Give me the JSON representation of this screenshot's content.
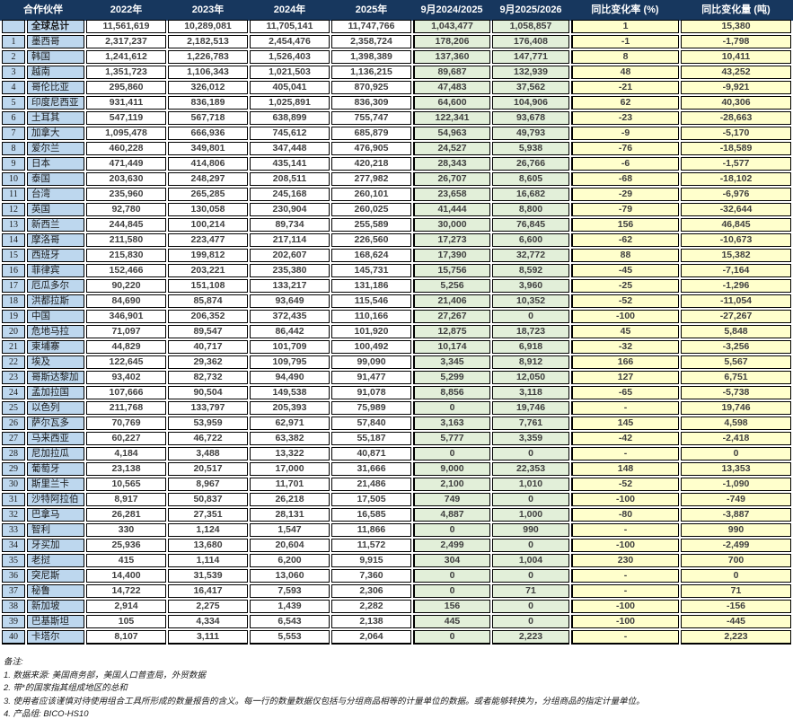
{
  "header": {
    "partner_label": "合作伙伴",
    "columns": [
      "2022年",
      "2023年",
      "2024年",
      "2025年",
      "9月2024/2025",
      "9月2025/2026",
      "同比变化率 (%)",
      "同比变化量 (吨)"
    ]
  },
  "colors": {
    "header_bg": "#17375E",
    "header_text": "#FFFFFF",
    "label_bg": "#BDD7EE",
    "year_bg": "#FFFFFF",
    "sep_month_bg": "#E2EFD9",
    "change_bg": "#FFFFCC",
    "number_text": "#3F3F3F"
  },
  "total_row": {
    "num": "",
    "name": "全球总计",
    "values": [
      "11,561,619",
      "10,289,081",
      "11,705,141",
      "11,747,766",
      "1,043,477",
      "1,058,857",
      "1",
      "15,380"
    ]
  },
  "rows": [
    {
      "num": "1",
      "name": "墨西哥",
      "values": [
        "2,317,237",
        "2,182,513",
        "2,454,476",
        "2,358,724",
        "178,206",
        "176,408",
        "-1",
        "-1,798"
      ]
    },
    {
      "num": "2",
      "name": "韩国",
      "values": [
        "1,241,612",
        "1,226,783",
        "1,526,403",
        "1,398,389",
        "137,360",
        "147,771",
        "8",
        "10,411"
      ]
    },
    {
      "num": "3",
      "name": "越南",
      "values": [
        "1,351,723",
        "1,106,343",
        "1,021,503",
        "1,136,215",
        "89,687",
        "132,939",
        "48",
        "43,252"
      ]
    },
    {
      "num": "4",
      "name": "哥伦比亚",
      "values": [
        "295,860",
        "326,012",
        "405,041",
        "870,925",
        "47,483",
        "37,562",
        "-21",
        "-9,921"
      ]
    },
    {
      "num": "5",
      "name": "印度尼西亚",
      "values": [
        "931,411",
        "836,189",
        "1,025,891",
        "836,309",
        "64,600",
        "104,906",
        "62",
        "40,306"
      ]
    },
    {
      "num": "6",
      "name": "土耳其",
      "values": [
        "547,119",
        "567,718",
        "638,899",
        "755,747",
        "122,341",
        "93,678",
        "-23",
        "-28,663"
      ]
    },
    {
      "num": "7",
      "name": "加拿大",
      "values": [
        "1,095,478",
        "666,936",
        "745,612",
        "685,879",
        "54,963",
        "49,793",
        "-9",
        "-5,170"
      ]
    },
    {
      "num": "8",
      "name": "爱尔兰",
      "values": [
        "460,228",
        "349,801",
        "347,448",
        "476,905",
        "24,527",
        "5,938",
        "-76",
        "-18,589"
      ]
    },
    {
      "num": "9",
      "name": "日本",
      "values": [
        "471,449",
        "414,806",
        "435,141",
        "420,218",
        "28,343",
        "26,766",
        "-6",
        "-1,577"
      ]
    },
    {
      "num": "10",
      "name": "泰国",
      "values": [
        "203,630",
        "248,297",
        "208,511",
        "277,982",
        "26,707",
        "8,605",
        "-68",
        "-18,102"
      ]
    },
    {
      "num": "11",
      "name": "台湾",
      "values": [
        "235,960",
        "265,285",
        "245,168",
        "260,101",
        "23,658",
        "16,682",
        "-29",
        "-6,976"
      ]
    },
    {
      "num": "12",
      "name": "英国",
      "values": [
        "92,780",
        "130,058",
        "230,904",
        "260,025",
        "41,444",
        "8,800",
        "-79",
        "-32,644"
      ]
    },
    {
      "num": "13",
      "name": "新西兰",
      "values": [
        "244,845",
        "100,214",
        "89,734",
        "255,589",
        "30,000",
        "76,845",
        "156",
        "46,845"
      ]
    },
    {
      "num": "14",
      "name": "摩洛哥",
      "values": [
        "211,580",
        "223,477",
        "217,114",
        "226,560",
        "17,273",
        "6,600",
        "-62",
        "-10,673"
      ]
    },
    {
      "num": "15",
      "name": "西班牙",
      "values": [
        "215,830",
        "199,812",
        "202,607",
        "168,624",
        "17,390",
        "32,772",
        "88",
        "15,382"
      ]
    },
    {
      "num": "16",
      "name": "菲律宾",
      "values": [
        "152,466",
        "203,221",
        "235,380",
        "145,731",
        "15,756",
        "8,592",
        "-45",
        "-7,164"
      ]
    },
    {
      "num": "17",
      "name": "厄瓜多尔",
      "values": [
        "90,220",
        "151,108",
        "133,217",
        "131,186",
        "5,256",
        "3,960",
        "-25",
        "-1,296"
      ]
    },
    {
      "num": "18",
      "name": "洪都拉斯",
      "values": [
        "84,690",
        "85,874",
        "93,649",
        "115,546",
        "21,406",
        "10,352",
        "-52",
        "-11,054"
      ]
    },
    {
      "num": "19",
      "name": "中国",
      "values": [
        "346,901",
        "206,352",
        "372,435",
        "110,166",
        "27,267",
        "0",
        "-100",
        "-27,267"
      ]
    },
    {
      "num": "20",
      "name": "危地马拉",
      "values": [
        "71,097",
        "89,547",
        "86,442",
        "101,920",
        "12,875",
        "18,723",
        "45",
        "5,848"
      ]
    },
    {
      "num": "21",
      "name": "柬埔寨",
      "values": [
        "44,829",
        "40,717",
        "101,709",
        "100,492",
        "10,174",
        "6,918",
        "-32",
        "-3,256"
      ]
    },
    {
      "num": "22",
      "name": "埃及",
      "values": [
        "122,645",
        "29,362",
        "109,795",
        "99,090",
        "3,345",
        "8,912",
        "166",
        "5,567"
      ]
    },
    {
      "num": "23",
      "name": "哥斯达黎加",
      "values": [
        "93,402",
        "82,732",
        "94,490",
        "91,477",
        "5,299",
        "12,050",
        "127",
        "6,751"
      ]
    },
    {
      "num": "24",
      "name": "孟加拉国",
      "values": [
        "107,666",
        "90,504",
        "149,538",
        "91,078",
        "8,856",
        "3,118",
        "-65",
        "-5,738"
      ]
    },
    {
      "num": "25",
      "name": "以色列",
      "values": [
        "211,768",
        "133,797",
        "205,393",
        "75,989",
        "0",
        "19,746",
        "-",
        "19,746"
      ]
    },
    {
      "num": "26",
      "name": "萨尔瓦多",
      "values": [
        "70,769",
        "53,959",
        "62,971",
        "57,840",
        "3,163",
        "7,761",
        "145",
        "4,598"
      ]
    },
    {
      "num": "27",
      "name": "马来西亚",
      "values": [
        "60,227",
        "46,722",
        "63,382",
        "55,187",
        "5,777",
        "3,359",
        "-42",
        "-2,418"
      ]
    },
    {
      "num": "28",
      "name": "尼加拉瓜",
      "values": [
        "4,184",
        "3,488",
        "13,322",
        "40,871",
        "0",
        "0",
        "-",
        "0"
      ]
    },
    {
      "num": "29",
      "name": "葡萄牙",
      "values": [
        "23,138",
        "20,517",
        "17,000",
        "31,666",
        "9,000",
        "22,353",
        "148",
        "13,353"
      ]
    },
    {
      "num": "30",
      "name": "斯里兰卡",
      "values": [
        "10,565",
        "8,967",
        "11,701",
        "21,486",
        "2,100",
        "1,010",
        "-52",
        "-1,090"
      ]
    },
    {
      "num": "31",
      "name": "沙特阿拉伯",
      "values": [
        "8,917",
        "50,837",
        "26,218",
        "17,505",
        "749",
        "0",
        "-100",
        "-749"
      ]
    },
    {
      "num": "32",
      "name": "巴拿马",
      "values": [
        "26,281",
        "27,351",
        "28,131",
        "16,585",
        "4,887",
        "1,000",
        "-80",
        "-3,887"
      ]
    },
    {
      "num": "33",
      "name": "智利",
      "values": [
        "330",
        "1,124",
        "1,547",
        "11,866",
        "0",
        "990",
        "-",
        "990"
      ]
    },
    {
      "num": "34",
      "name": "牙买加",
      "values": [
        "25,936",
        "13,680",
        "20,604",
        "11,572",
        "2,499",
        "0",
        "-100",
        "-2,499"
      ]
    },
    {
      "num": "35",
      "name": "老挝",
      "values": [
        "415",
        "1,114",
        "6,200",
        "9,915",
        "304",
        "1,004",
        "230",
        "700"
      ]
    },
    {
      "num": "36",
      "name": "突尼斯",
      "values": [
        "14,400",
        "31,539",
        "13,060",
        "7,360",
        "0",
        "0",
        "-",
        "0"
      ]
    },
    {
      "num": "37",
      "name": "秘鲁",
      "values": [
        "14,722",
        "16,417",
        "7,593",
        "2,306",
        "0",
        "71",
        "-",
        "71"
      ]
    },
    {
      "num": "38",
      "name": "新加坡",
      "values": [
        "2,914",
        "2,275",
        "1,439",
        "2,282",
        "156",
        "0",
        "-100",
        "-156"
      ]
    },
    {
      "num": "39",
      "name": "巴基斯坦",
      "values": [
        "105",
        "4,334",
        "6,543",
        "2,138",
        "445",
        "0",
        "-100",
        "-445"
      ]
    },
    {
      "num": "40",
      "name": "卡塔尔",
      "values": [
        "8,107",
        "3,111",
        "5,553",
        "2,064",
        "0",
        "2,223",
        "-",
        "2,223"
      ]
    }
  ],
  "footnotes": {
    "title": "备注:",
    "items": [
      "1. 数据来源: 美国商务部，美国人口普查局，外贸数据",
      "2. 带*的国家指其组成地区的总和",
      "3. 使用者应该谨慎对待使用组合工具所形成的数量报告的含义。每一行的数量数据仅包括与分组商品相等的计量单位的数据。或者能够转换为，分组商品的指定计量单位。",
      "4. 产品组: BICO-HS10"
    ]
  }
}
